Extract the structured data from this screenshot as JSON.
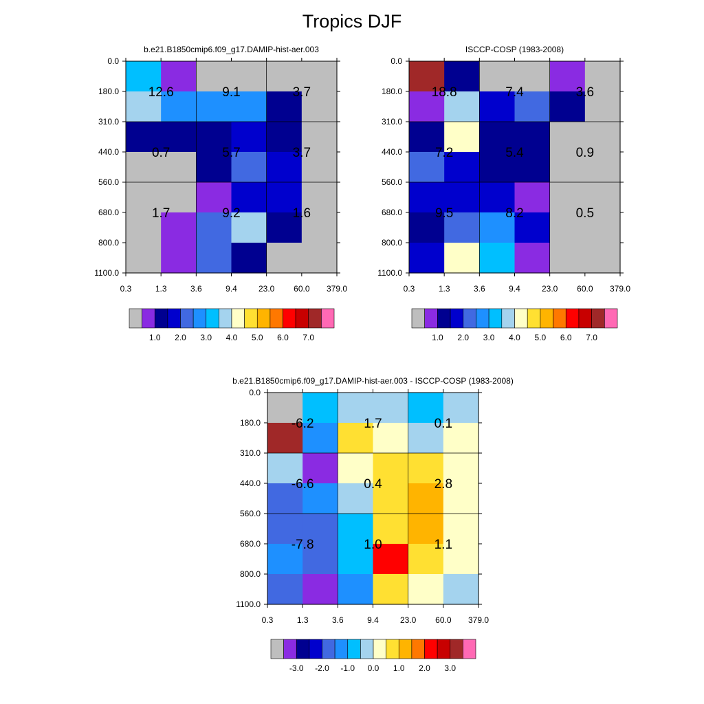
{
  "figure_title": "Tropics DJF",
  "chart_data": [
    {
      "type": "heatmap",
      "title": "b.e21.B1850cmip6.f09_g17.DAMIP-hist-aer.003",
      "x_ticks": [
        "0.3",
        "1.3",
        "3.6",
        "9.4",
        "23.0",
        "60.0",
        "379.0"
      ],
      "y_ticks": [
        "0.0",
        "180.0",
        "310.0",
        "440.0",
        "560.0",
        "680.0",
        "800.0",
        "1100.0"
      ],
      "grid": true,
      "cell_colors": [
        [
          "#00BFFF",
          "#8A2BE2",
          "#BEBEBE",
          "#BEBEBE",
          "#BEBEBE",
          "#BEBEBE"
        ],
        [
          "#A4D3EE",
          "#1E90FF",
          "#1E90FF",
          "#1E90FF",
          "#000090",
          "#BEBEBE"
        ],
        [
          "#000090",
          "#000090",
          "#000090",
          "#0000CD",
          "#000090",
          "#BEBEBE"
        ],
        [
          "#BEBEBE",
          "#BEBEBE",
          "#000090",
          "#4169E1",
          "#0000CD",
          "#BEBEBE"
        ],
        [
          "#BEBEBE",
          "#BEBEBE",
          "#8A2BE2",
          "#0000CD",
          "#0000CD",
          "#BEBEBE"
        ],
        [
          "#BEBEBE",
          "#8A2BE2",
          "#4169E1",
          "#A4D3EE",
          "#000090",
          "#BEBEBE"
        ],
        [
          "#BEBEBE",
          "#8A2BE2",
          "#4169E1",
          "#000090",
          "#BEBEBE",
          "#BEBEBE"
        ]
      ],
      "annotations": [
        {
          "value": "12.6",
          "x_band": 0,
          "y_band": 0
        },
        {
          "value": "9.1",
          "x_band": 1,
          "y_band": 0
        },
        {
          "value": "3.7",
          "x_band": 2,
          "y_band": 0
        },
        {
          "value": "0.7",
          "x_band": 0,
          "y_band": 1
        },
        {
          "value": "5.7",
          "x_band": 1,
          "y_band": 1
        },
        {
          "value": "3.7",
          "x_band": 2,
          "y_band": 1
        },
        {
          "value": "1.7",
          "x_band": 0,
          "y_band": 2
        },
        {
          "value": "9.2",
          "x_band": 1,
          "y_band": 2
        },
        {
          "value": "1.6",
          "x_band": 2,
          "y_band": 2
        }
      ],
      "colorbar": {
        "colors": [
          "#BEBEBE",
          "#8A2BE2",
          "#000090",
          "#0000CD",
          "#4169E1",
          "#1E90FF",
          "#00BFFF",
          "#A4D3EE",
          "#FFFFC8",
          "#FFE032",
          "#FFB400",
          "#FF7800",
          "#FF0000",
          "#C80000",
          "#A02828",
          "#FF69B4"
        ],
        "labels": [
          "1.0",
          "2.0",
          "3.0",
          "4.0",
          "5.0",
          "6.0",
          "7.0"
        ]
      }
    },
    {
      "type": "heatmap",
      "title": "ISCCP-COSP (1983-2008)",
      "x_ticks": [
        "0.3",
        "1.3",
        "3.6",
        "9.4",
        "23.0",
        "60.0",
        "379.0"
      ],
      "y_ticks": [
        "0.0",
        "180.0",
        "310.0",
        "440.0",
        "560.0",
        "680.0",
        "800.0",
        "1100.0"
      ],
      "grid": true,
      "cell_colors": [
        [
          "#A02828",
          "#000090",
          "#BEBEBE",
          "#BEBEBE",
          "#8A2BE2",
          "#BEBEBE"
        ],
        [
          "#8A2BE2",
          "#A4D3EE",
          "#0000CD",
          "#4169E1",
          "#000090",
          "#BEBEBE"
        ],
        [
          "#000090",
          "#FFFFC8",
          "#000090",
          "#000090",
          "#BEBEBE",
          "#BEBEBE"
        ],
        [
          "#4169E1",
          "#0000CD",
          "#000090",
          "#000090",
          "#BEBEBE",
          "#BEBEBE"
        ],
        [
          "#0000CD",
          "#0000CD",
          "#0000CD",
          "#8A2BE2",
          "#BEBEBE",
          "#BEBEBE"
        ],
        [
          "#000090",
          "#4169E1",
          "#1E90FF",
          "#0000CD",
          "#BEBEBE",
          "#BEBEBE"
        ],
        [
          "#0000CD",
          "#FFFFC8",
          "#00BFFF",
          "#8A2BE2",
          "#BEBEBE",
          "#BEBEBE"
        ]
      ],
      "annotations": [
        {
          "value": "18.8",
          "x_band": 0,
          "y_band": 0
        },
        {
          "value": "7.4",
          "x_band": 1,
          "y_band": 0
        },
        {
          "value": "3.6",
          "x_band": 2,
          "y_band": 0
        },
        {
          "value": "7.2",
          "x_band": 0,
          "y_band": 1
        },
        {
          "value": "5.4",
          "x_band": 1,
          "y_band": 1
        },
        {
          "value": "0.9",
          "x_band": 2,
          "y_band": 1
        },
        {
          "value": "9.5",
          "x_band": 0,
          "y_band": 2
        },
        {
          "value": "8.2",
          "x_band": 1,
          "y_band": 2
        },
        {
          "value": "0.5",
          "x_band": 2,
          "y_band": 2
        }
      ],
      "colorbar": {
        "colors": [
          "#BEBEBE",
          "#8A2BE2",
          "#000090",
          "#0000CD",
          "#4169E1",
          "#1E90FF",
          "#00BFFF",
          "#A4D3EE",
          "#FFFFC8",
          "#FFE032",
          "#FFB400",
          "#FF7800",
          "#FF0000",
          "#C80000",
          "#A02828",
          "#FF69B4"
        ],
        "labels": [
          "1.0",
          "2.0",
          "3.0",
          "4.0",
          "5.0",
          "6.0",
          "7.0"
        ]
      }
    },
    {
      "type": "heatmap",
      "title": "b.e21.B1850cmip6.f09_g17.DAMIP-hist-aer.003 - ISCCP-COSP (1983-2008)",
      "x_ticks": [
        "0.3",
        "1.3",
        "3.6",
        "9.4",
        "23.0",
        "60.0",
        "379.0"
      ],
      "y_ticks": [
        "0.0",
        "180.0",
        "310.0",
        "440.0",
        "560.0",
        "680.0",
        "800.0",
        "1100.0"
      ],
      "grid": true,
      "cell_colors": [
        [
          "#BEBEBE",
          "#00BFFF",
          "#A4D3EE",
          "#A4D3EE",
          "#00BFFF",
          "#A4D3EE"
        ],
        [
          "#A02828",
          "#1E90FF",
          "#FFE032",
          "#FFFFC8",
          "#A4D3EE",
          "#FFFFC8"
        ],
        [
          "#A4D3EE",
          "#8A2BE2",
          "#FFFFC8",
          "#FFE032",
          "#FFE032",
          "#FFFFC8"
        ],
        [
          "#4169E1",
          "#1E90FF",
          "#A4D3EE",
          "#FFE032",
          "#FFB400",
          "#FFFFC8"
        ],
        [
          "#4169E1",
          "#4169E1",
          "#00BFFF",
          "#FFE032",
          "#FFB400",
          "#FFFFC8"
        ],
        [
          "#1E90FF",
          "#4169E1",
          "#00BFFF",
          "#FF0000",
          "#FFE032",
          "#FFFFC8"
        ],
        [
          "#4169E1",
          "#8A2BE2",
          "#1E90FF",
          "#FFE032",
          "#FFFFC8",
          "#A4D3EE"
        ]
      ],
      "annotations": [
        {
          "value": "-6.2",
          "x_band": 0,
          "y_band": 0
        },
        {
          "value": "1.7",
          "x_band": 1,
          "y_band": 0
        },
        {
          "value": "0.1",
          "x_band": 2,
          "y_band": 0
        },
        {
          "value": "-6.6",
          "x_band": 0,
          "y_band": 1
        },
        {
          "value": "0.4",
          "x_band": 1,
          "y_band": 1
        },
        {
          "value": "2.8",
          "x_band": 2,
          "y_band": 1
        },
        {
          "value": "-7.8",
          "x_band": 0,
          "y_band": 2
        },
        {
          "value": "1.0",
          "x_band": 1,
          "y_band": 2
        },
        {
          "value": "1.1",
          "x_band": 2,
          "y_band": 2
        }
      ],
      "colorbar": {
        "colors": [
          "#BEBEBE",
          "#8A2BE2",
          "#000090",
          "#0000CD",
          "#4169E1",
          "#1E90FF",
          "#00BFFF",
          "#A4D3EE",
          "#FFFFC8",
          "#FFE032",
          "#FFB400",
          "#FF7800",
          "#FF0000",
          "#C80000",
          "#A02828",
          "#FF69B4"
        ],
        "labels": [
          "-3.0",
          "-2.0",
          "-1.0",
          "0.0",
          "1.0",
          "2.0",
          "3.0"
        ]
      }
    }
  ]
}
